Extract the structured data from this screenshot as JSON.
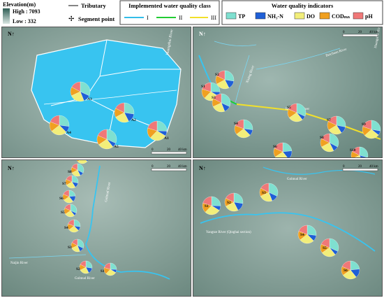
{
  "legend": {
    "elevation_title": "Elevation(m)",
    "elevation_high": "High : 7093",
    "elevation_low": "Low : 332",
    "tributary": "Tributary",
    "segment_point": "Segment point",
    "class_title": "Implemented water quality class",
    "class_labels": [
      "I",
      "II",
      "III"
    ],
    "indicator_title": "Water quality indicators",
    "indicators": [
      {
        "label": "TP",
        "color": "#7fe0d0"
      },
      {
        "label": "NH₃-N",
        "color": "#1f5fd6"
      },
      {
        "label": "DO",
        "color": "#f2ee7a"
      },
      {
        "label": "CODₘₙ",
        "color": "#f0a020"
      },
      {
        "label": "pH",
        "color": "#f07878"
      }
    ]
  },
  "scale": {
    "t0": "0",
    "t1": "20",
    "t2": "40 km"
  },
  "panels": {
    "p1": {
      "points": [
        "A1",
        "A2",
        "A3",
        "A4",
        "A5"
      ],
      "river": "Huangshui River"
    },
    "p2": {
      "points": [
        "S1",
        "S2",
        "S3",
        "S4",
        "S5",
        "S6",
        "S7",
        "S8",
        "S9",
        "S10"
      ],
      "rivers": [
        "Huangshui River",
        "Xining River",
        "Beichuan River",
        "Huangshui River"
      ]
    },
    "p3": {
      "points": [
        "S1",
        "S2",
        "S3",
        "S4",
        "S5",
        "S6",
        "S7",
        "S8",
        "S9"
      ],
      "rivers": [
        "Golmud River",
        "Naijin River",
        "Golmud River"
      ]
    },
    "p4": {
      "points": [
        "S1",
        "S2",
        "S3",
        "S4",
        "S5",
        "S6"
      ],
      "rivers": [
        "Golmud River",
        "Yangtze River (Qinghai section)"
      ]
    }
  }
}
